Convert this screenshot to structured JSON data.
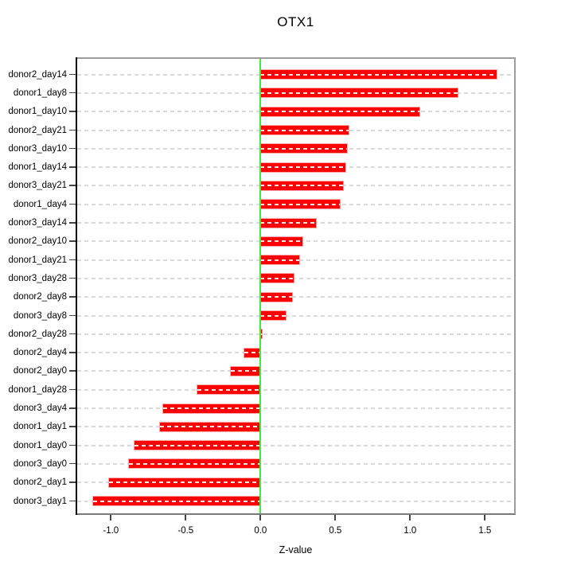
{
  "title": "OTX1",
  "xlabel": "Z-value",
  "chart_data": {
    "type": "bar",
    "orientation": "horizontal",
    "title": "OTX1",
    "xlabel": "Z-value",
    "ylabel": "",
    "grid": true,
    "legend": false,
    "xlim": [
      -1.225,
      1.695
    ],
    "xticks": [
      -1.0,
      -0.5,
      0.0,
      0.5,
      1.0,
      1.5
    ],
    "xtick_labels": [
      "-1.0",
      "-0.5",
      "0.0",
      "0.5",
      "1.0",
      "1.5"
    ],
    "categories": [
      "donor2_day14",
      "donor1_day8",
      "donor1_day10",
      "donor2_day21",
      "donor3_day10",
      "donor1_day14",
      "donor3_day21",
      "donor1_day4",
      "donor3_day14",
      "donor2_day10",
      "donor1_day21",
      "donor3_day28",
      "donor2_day8",
      "donor3_day8",
      "donor2_day28",
      "donor2_day4",
      "donor2_day0",
      "donor1_day28",
      "donor3_day4",
      "donor1_day1",
      "donor1_day0",
      "donor3_day0",
      "donor2_day1",
      "donor3_day1"
    ],
    "values": [
      1.58,
      1.32,
      1.06,
      0.59,
      0.58,
      0.57,
      0.55,
      0.53,
      0.37,
      0.28,
      0.26,
      0.22,
      0.21,
      0.17,
      0.01,
      -0.11,
      -0.2,
      -0.42,
      -0.65,
      -0.67,
      -0.84,
      -0.88,
      -1.01,
      -1.12
    ],
    "bar_color": "#ff0000",
    "bar_edge_color": "#ffa8a8",
    "zero_line_color": "#3bee3b",
    "grid_color": "#d9d9d9",
    "axis_box_color": "#9c9c9c",
    "y_axis_color": "#000000"
  }
}
